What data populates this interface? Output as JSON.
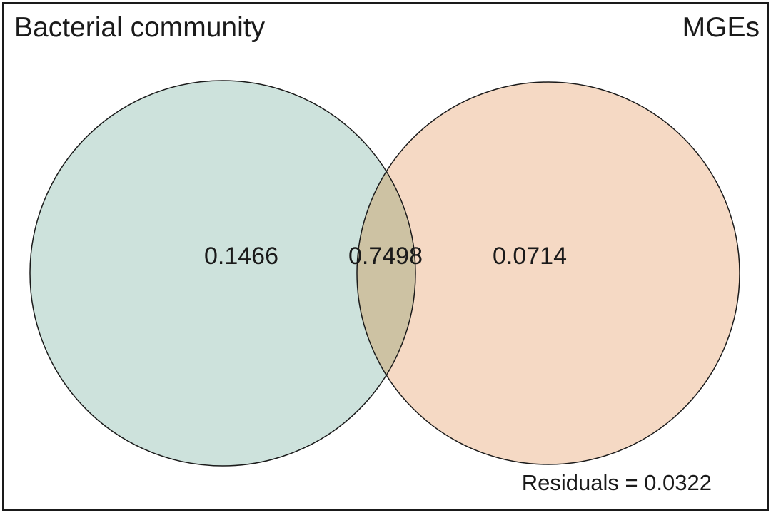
{
  "diagram": {
    "type": "venn",
    "sets": [
      {
        "name": "Bacterial community",
        "fill": "#cde2dc"
      },
      {
        "name": "MGEs",
        "fill": "#f5d9c4"
      }
    ],
    "overlap_fill": "#cdc2a3",
    "outline_color": "#1a1a1a",
    "regions": {
      "bacterial_only": "0.1466",
      "shared": "0.7498",
      "mges_only": "0.0714"
    },
    "residuals_text": "Residuals = 0.0322"
  }
}
